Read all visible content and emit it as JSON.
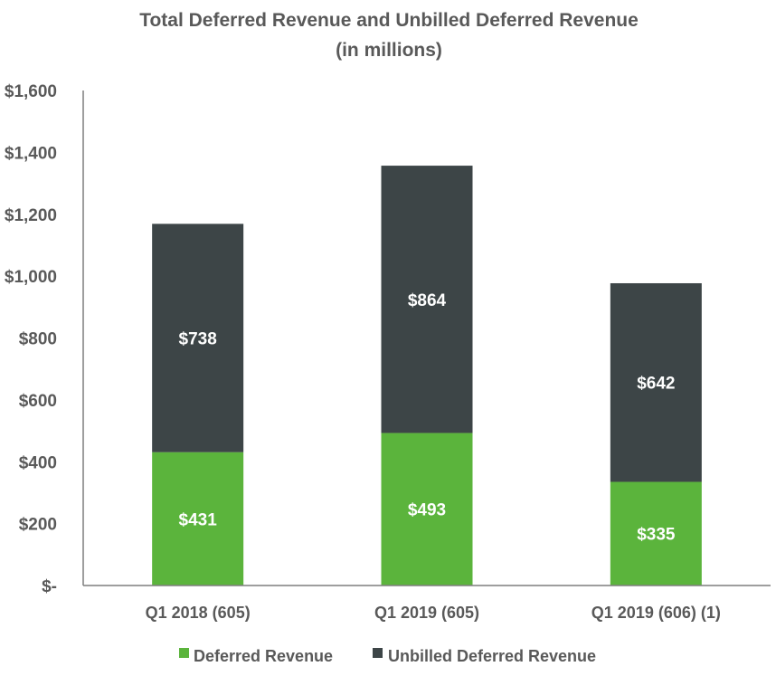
{
  "chart_data": {
    "type": "bar",
    "stacked": true,
    "title": "Total Deferred Revenue and Unbilled Deferred Revenue",
    "subtitle": "(in millions)",
    "categories": [
      "Q1 2018 (605)",
      "Q1 2019 (605)",
      "Q1 2019 (606) (1)"
    ],
    "series": [
      {
        "name": "Deferred Revenue",
        "values": [
          431,
          493,
          335
        ],
        "labels": [
          "$431",
          "$493",
          "$335"
        ],
        "color": "#5bb43c"
      },
      {
        "name": "Unbilled Deferred Revenue",
        "values": [
          738,
          864,
          642
        ],
        "labels": [
          "$738",
          "$864",
          "$642"
        ],
        "color": "#3d4547"
      }
    ],
    "ylim": [
      0,
      1600
    ],
    "yticks": [
      0,
      200,
      400,
      600,
      800,
      1000,
      1200,
      1400,
      1600
    ],
    "ytick_labels": [
      "$-",
      "$200",
      "$400",
      "$600",
      "$800",
      "$1,000",
      "$1,200",
      "$1,400",
      "$1,600"
    ],
    "xlabel": "",
    "ylabel": "",
    "grid": false,
    "legend_position": "bottom"
  }
}
